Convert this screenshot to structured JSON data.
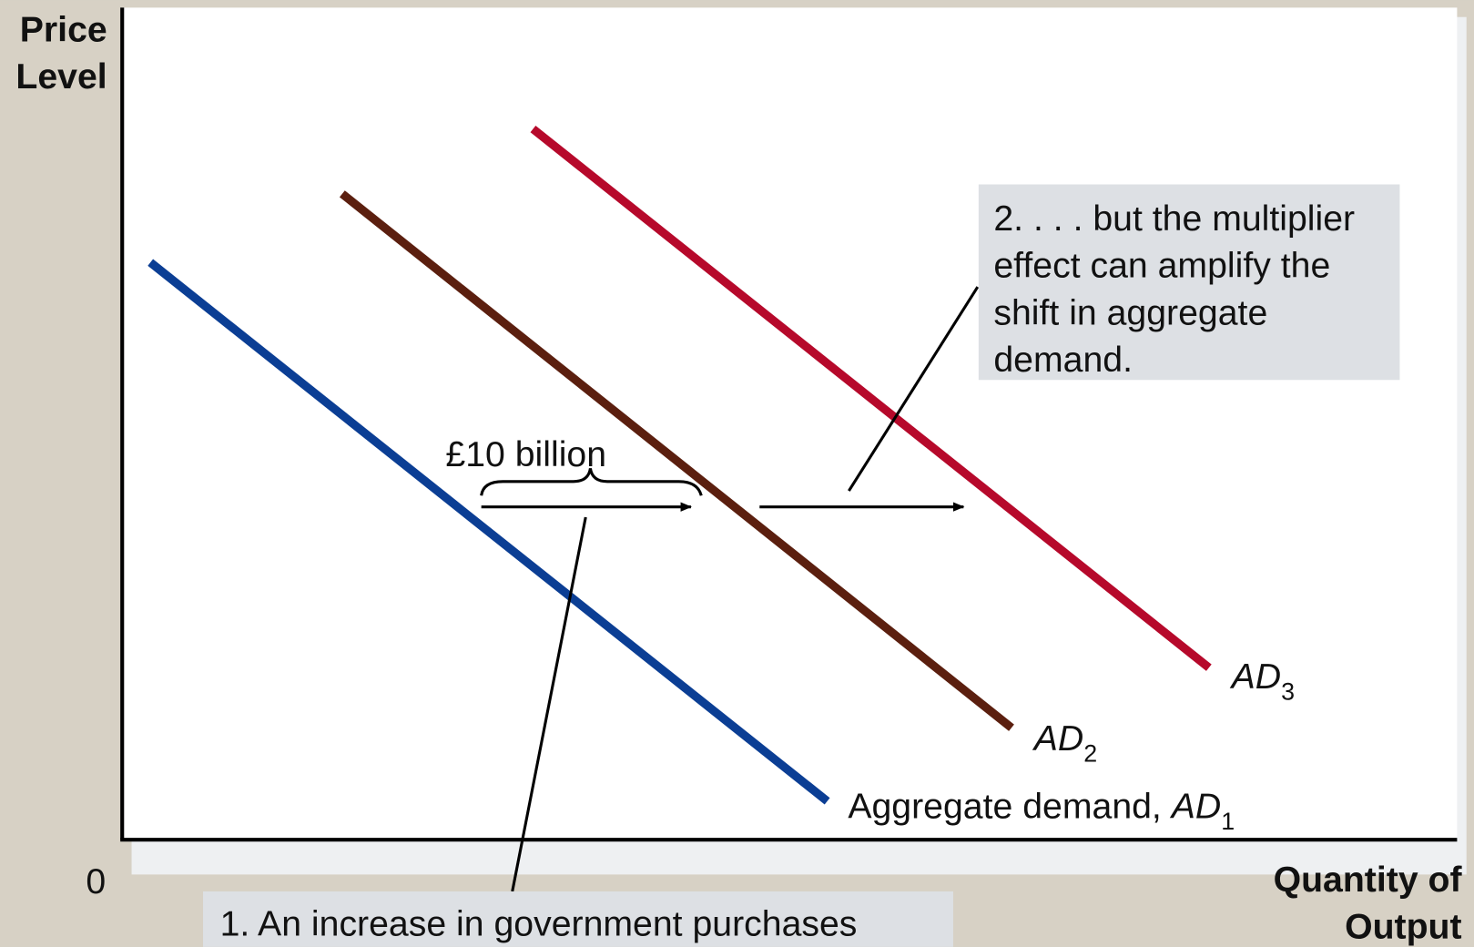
{
  "axes": {
    "y_label": [
      "Price",
      "Level"
    ],
    "x_label": [
      "Quantity of",
      "Output"
    ],
    "origin": "0"
  },
  "curves": [
    {
      "prefix": "Aggregate demand, ",
      "name": "AD",
      "sub": "1",
      "color": "#0b3e94"
    },
    {
      "name": "AD",
      "sub": "2",
      "color": "#5b1f0f"
    },
    {
      "name": "AD",
      "sub": "3",
      "color": "#b6092b"
    }
  ],
  "annotations": {
    "shift": "£10 billion",
    "multiplier": [
      "2. . . . but the multiplier",
      "effect can amplify the",
      "shift in aggregate",
      "demand."
    ],
    "purchases": "1. An increase in government purchases"
  }
}
